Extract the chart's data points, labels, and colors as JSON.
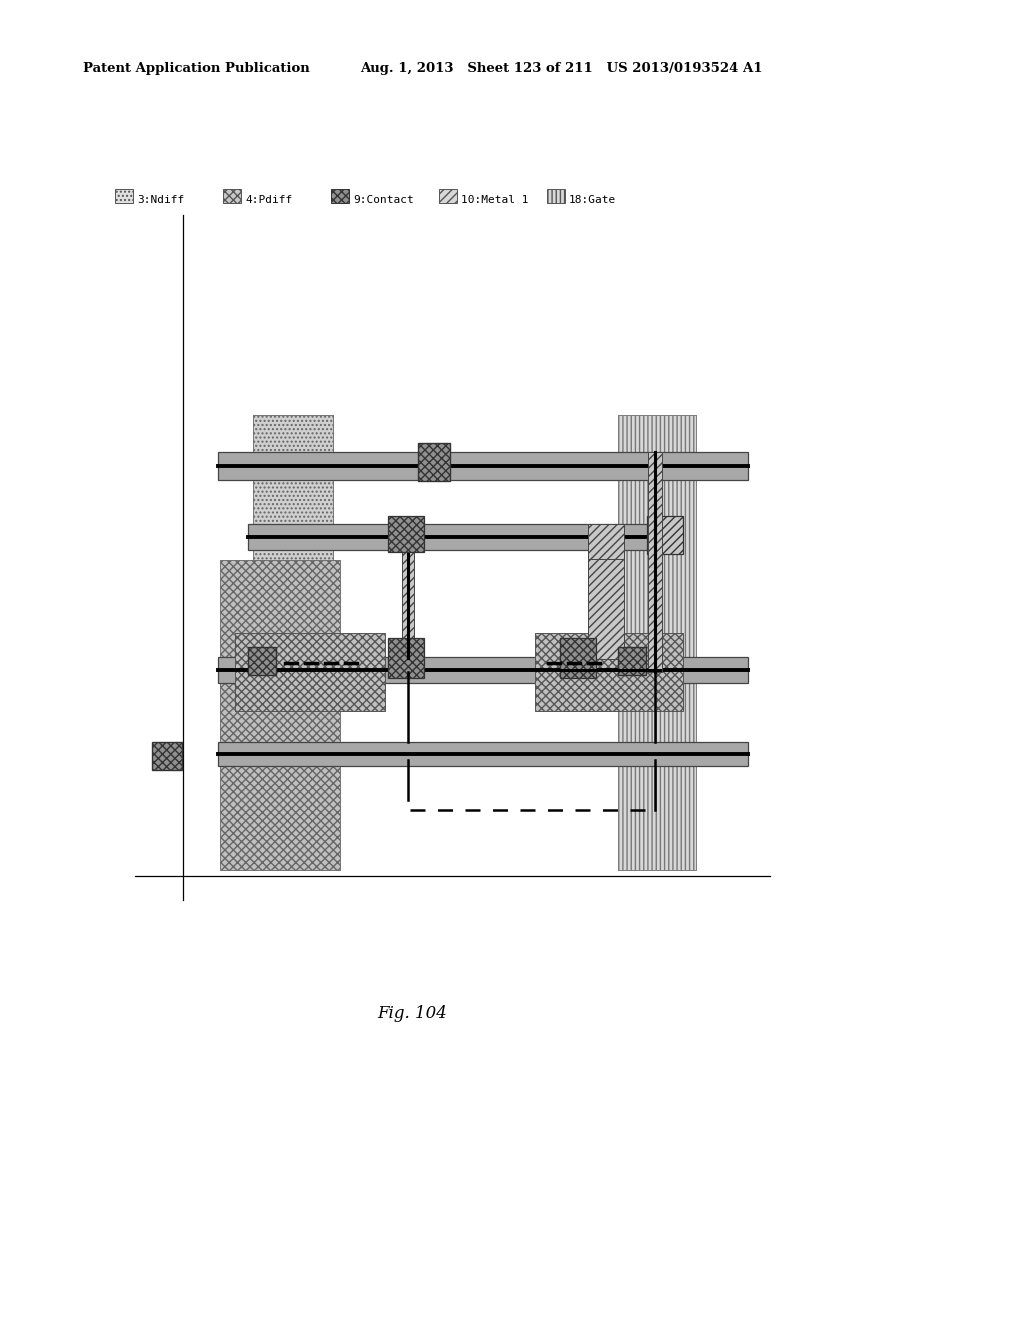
{
  "title_line1": "Patent Application Publication",
  "title_line2": "Aug. 1, 2013   Sheet 123 of 211   US 2013/0193524 A1",
  "fig_label": "Fig. 104",
  "bg_color": "#ffffff",
  "ndiff_color": "#d0d0d0",
  "pdiff_color": "#c0c0c0",
  "gate_color": "#d8d8d8",
  "metal_color": "#a8a8a8",
  "contact_color": "#909090",
  "black": "#000000",
  "dark": "#333333",
  "med_gray": "#888888"
}
